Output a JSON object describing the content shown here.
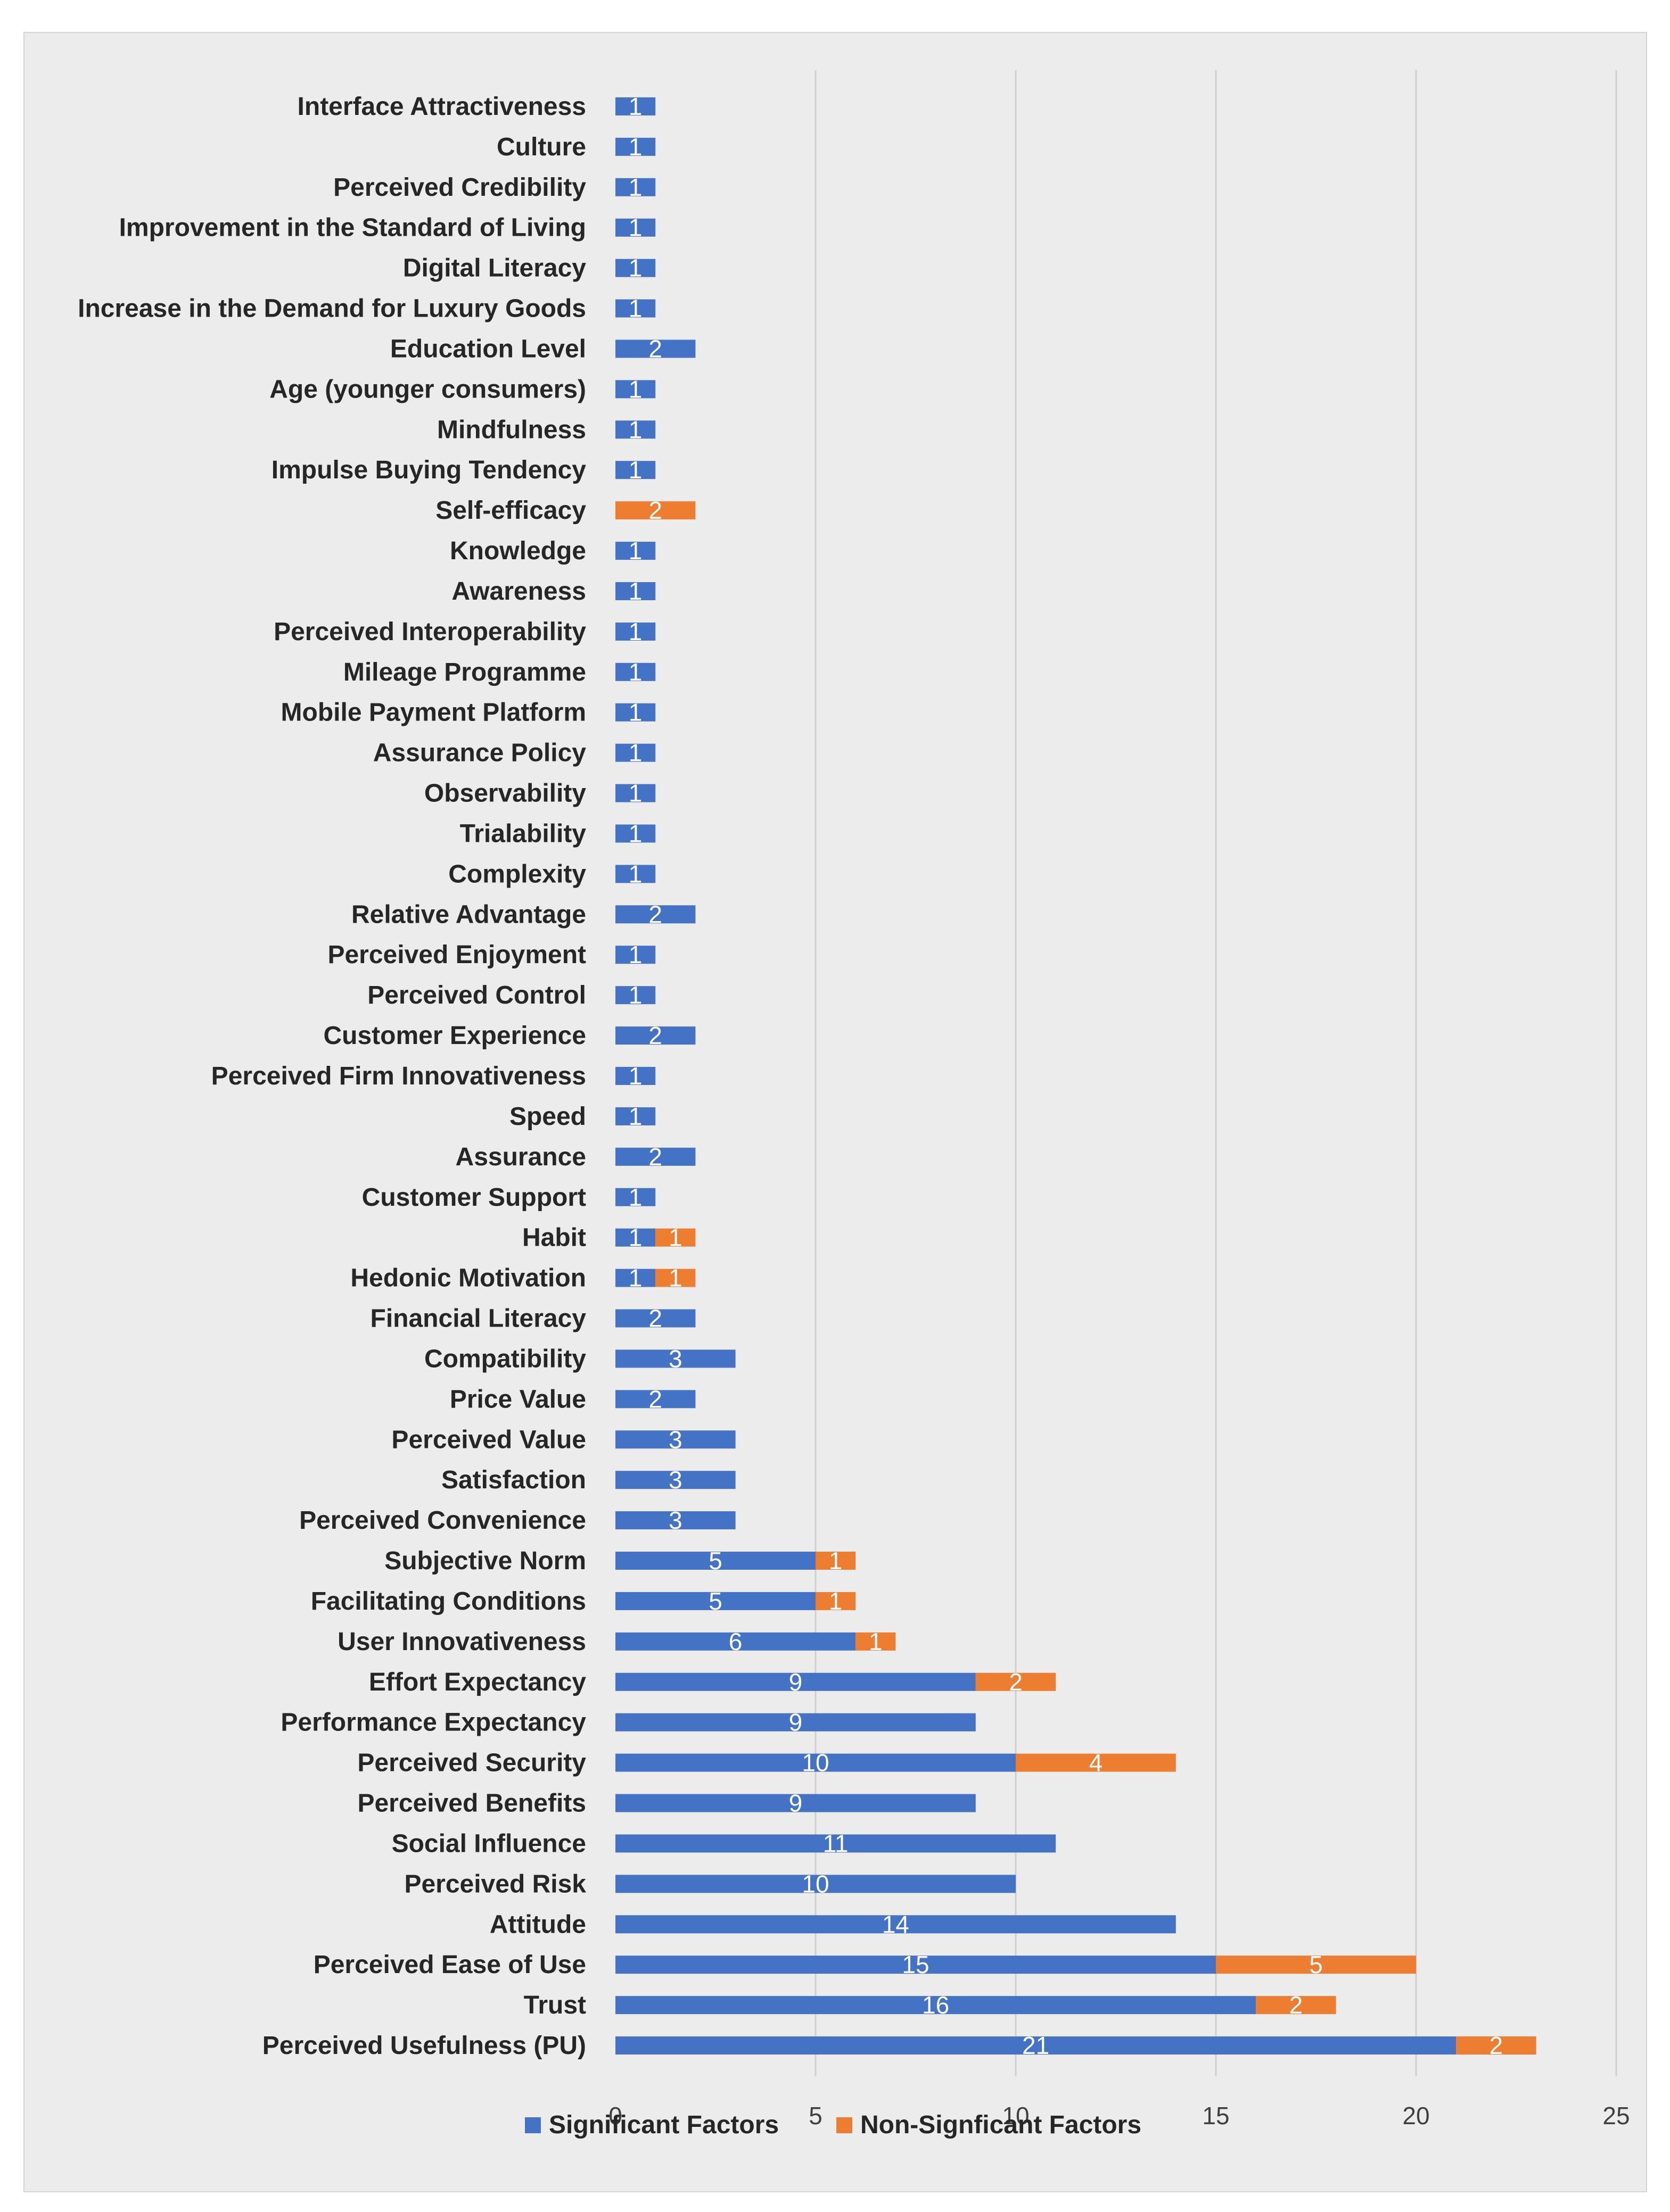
{
  "chart_data": {
    "type": "bar",
    "orientation": "horizontal",
    "stacked": true,
    "title": "",
    "xlabel": "",
    "ylabel": "",
    "xlim": [
      0,
      25
    ],
    "xticks": [
      0,
      5,
      10,
      15,
      20,
      25
    ],
    "grid": true,
    "legend_position": "bottom",
    "colors": {
      "Significant Factors": "#4472c4",
      "Non-Signficant Factors": "#ed7d31"
    },
    "categories": [
      "Interface Attractiveness",
      "Culture",
      "Perceived Credibility",
      "Improvement in the Standard of Living",
      "Digital Literacy",
      "Increase in the Demand for Luxury Goods",
      "Education Level",
      "Age (younger consumers)",
      "Mindfulness",
      "Impulse Buying Tendency",
      "Self-efficacy",
      "Knowledge",
      "Awareness",
      "Perceived Interoperability",
      "Mileage Programme",
      "Mobile Payment Platform",
      "Assurance Policy",
      "Observability",
      "Trialability",
      "Complexity",
      "Relative Advantage",
      "Perceived Enjoyment",
      "Perceived Control",
      "Customer Experience",
      "Perceived Firm Innovativeness",
      "Speed",
      "Assurance",
      "Customer Support",
      "Habit",
      "Hedonic Motivation",
      "Financial Literacy",
      "Compatibility",
      "Price Value",
      "Perceived Value",
      "Satisfaction",
      "Perceived Convenience",
      "Subjective Norm",
      "Facilitating Conditions",
      "User Innovativeness",
      "Effort Expectancy",
      "Performance Expectancy",
      "Perceived Security",
      "Perceived Benefits",
      "Social Influence",
      "Perceived Risk",
      "Attitude",
      "Perceived Ease of Use",
      "Trust",
      "Perceived Usefulness (PU)"
    ],
    "series": [
      {
        "name": "Significant Factors",
        "values": [
          1,
          1,
          1,
          1,
          1,
          1,
          2,
          1,
          1,
          1,
          0,
          1,
          1,
          1,
          1,
          1,
          1,
          1,
          1,
          1,
          2,
          1,
          1,
          2,
          1,
          1,
          2,
          1,
          1,
          1,
          2,
          3,
          2,
          3,
          3,
          3,
          5,
          5,
          6,
          9,
          9,
          10,
          9,
          11,
          10,
          14,
          15,
          16,
          21
        ]
      },
      {
        "name": "Non-Signficant Factors",
        "values": [
          0,
          0,
          0,
          0,
          0,
          0,
          0,
          0,
          0,
          0,
          2,
          0,
          0,
          0,
          0,
          0,
          0,
          0,
          0,
          0,
          0,
          0,
          0,
          0,
          0,
          0,
          0,
          0,
          1,
          1,
          0,
          0,
          0,
          0,
          0,
          0,
          1,
          1,
          1,
          2,
          0,
          4,
          0,
          0,
          0,
          0,
          5,
          2,
          2
        ]
      }
    ]
  }
}
